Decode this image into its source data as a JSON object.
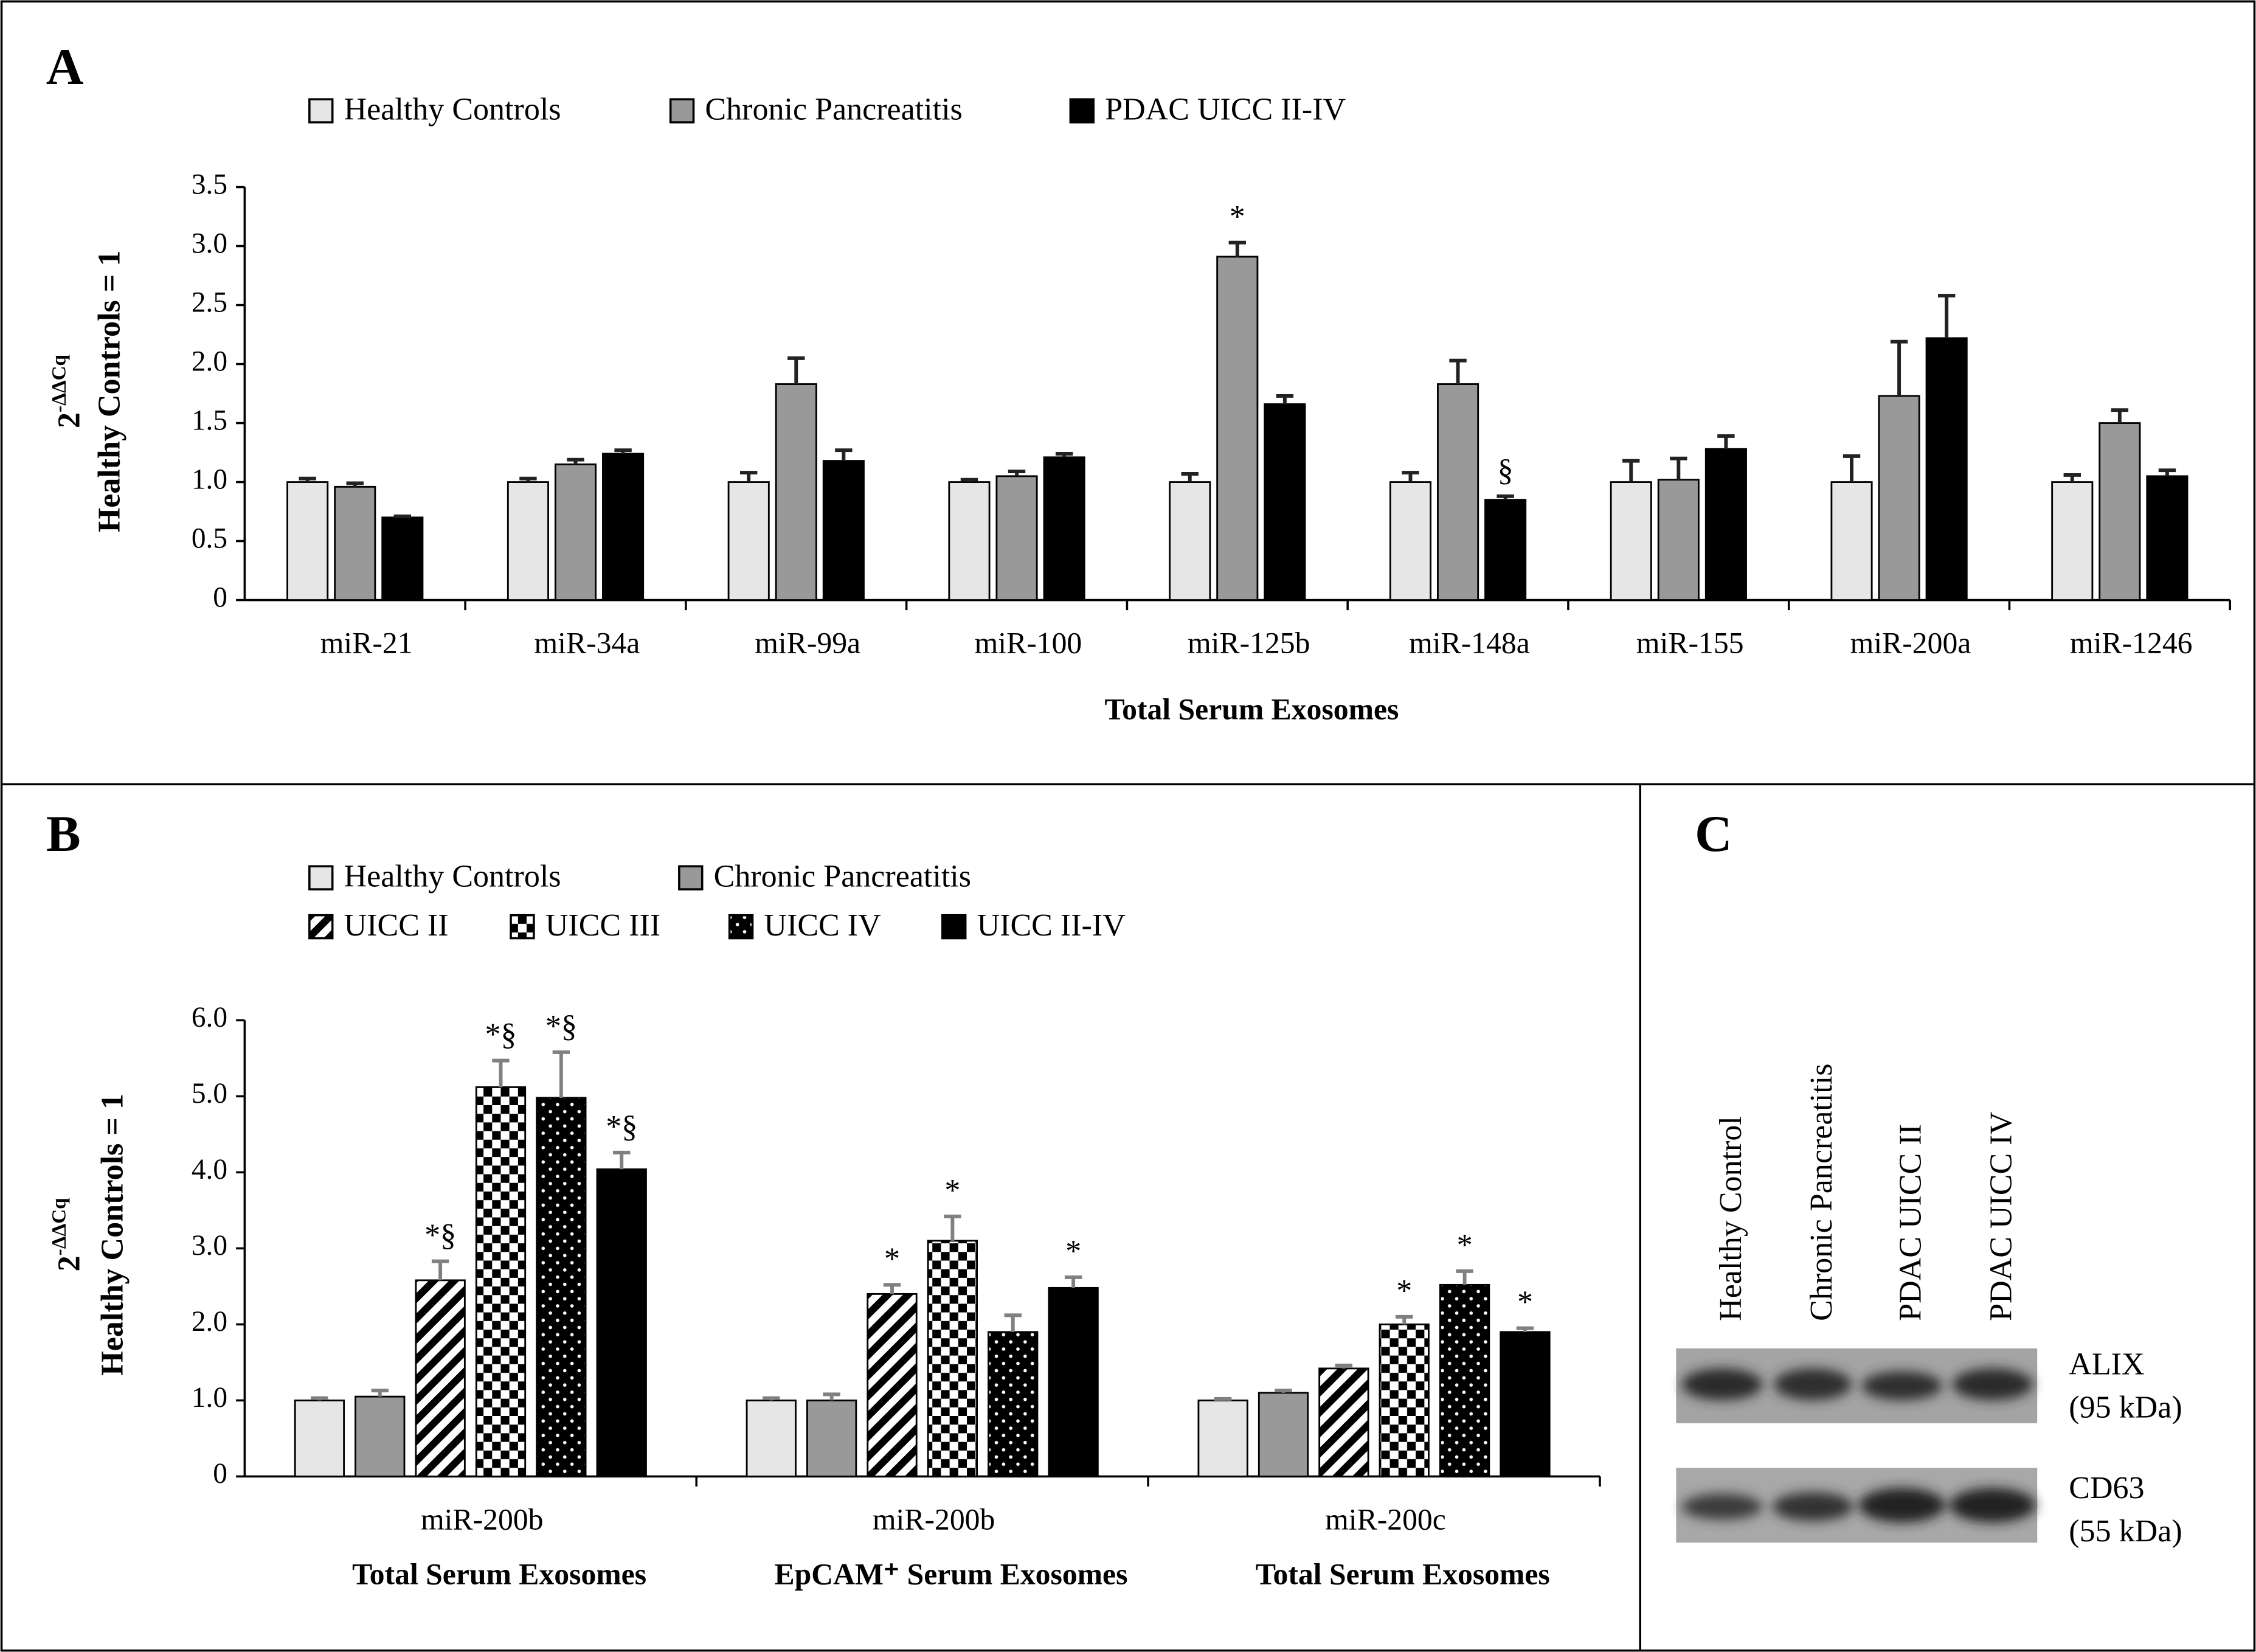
{
  "chart_data": [
    {
      "type": "bar",
      "panel": "A",
      "xlabel": "Total Serum Exosomes",
      "ylabel": "Healthy Controls = 1",
      "ylabel_base": "2",
      "ylabel_sup": "-ΔΔCq",
      "categories": [
        "miR-21",
        "miR-34a",
        "miR-99a",
        "miR-100",
        "miR-125b",
        "miR-148a",
        "miR-155",
        "miR-200a",
        "miR-1246"
      ],
      "ylim": [
        0,
        3.5
      ],
      "yticks": [
        0,
        0.5,
        {
          "value": 1,
          "label": "1.0"
        },
        1.5,
        {
          "value": 2,
          "label": "2.0"
        },
        2.5,
        {
          "value": 3,
          "label": "3.0"
        },
        3.5
      ],
      "error_color": "#222222",
      "series": [
        {
          "name": "Healthy Controls",
          "color": "#e6e6e6",
          "pattern": null,
          "values": [
            1.0,
            1.0,
            1.0,
            1.0,
            1.0,
            1.0,
            1.0,
            1.0,
            1.0
          ],
          "errors": [
            0.03,
            0.03,
            0.08,
            0.02,
            0.07,
            0.08,
            0.18,
            0.22,
            0.06
          ],
          "annotations": [
            null,
            null,
            null,
            null,
            null,
            null,
            null,
            null,
            null
          ]
        },
        {
          "name": "Chronic Pancreatitis",
          "color": "#999999",
          "pattern": null,
          "values": [
            0.96,
            1.15,
            1.83,
            1.05,
            2.91,
            1.83,
            1.02,
            1.73,
            1.5
          ],
          "errors": [
            0.03,
            0.04,
            0.22,
            0.04,
            0.12,
            0.2,
            0.18,
            0.46,
            0.11
          ],
          "annotations": [
            null,
            null,
            null,
            null,
            "*",
            null,
            null,
            null,
            null
          ]
        },
        {
          "name": "PDAC UICC II-IV",
          "color": "#000000",
          "pattern": null,
          "values": [
            0.7,
            1.24,
            1.18,
            1.21,
            1.66,
            0.85,
            1.28,
            2.22,
            1.05
          ],
          "errors": [
            0.01,
            0.03,
            0.09,
            0.03,
            0.07,
            0.03,
            0.11,
            0.36,
            0.05
          ],
          "annotations": [
            null,
            null,
            null,
            null,
            null,
            "§",
            null,
            null,
            null
          ]
        }
      ]
    },
    {
      "type": "bar",
      "panel": "B",
      "ylabel": "Healthy Controls = 1",
      "ylabel_base": "2",
      "ylabel_sup": "-ΔΔCq",
      "categories": [
        "miR-200b",
        "miR-200b",
        "miR-200c"
      ],
      "subcategories": [
        "Total Serum Exosomes",
        "EpCAM⁺ Serum Exosomes",
        "Total Serum Exosomes"
      ],
      "ylim": [
        0,
        6
      ],
      "yticks": [
        0,
        {
          "value": 1,
          "label": "1.0"
        },
        {
          "value": 2,
          "label": "2.0"
        },
        {
          "value": 3,
          "label": "3.0"
        },
        {
          "value": 4,
          "label": "4.0"
        },
        {
          "value": 5,
          "label": "5.0"
        },
        {
          "value": 6,
          "label": "6.0"
        }
      ],
      "error_color": "#808080",
      "series": [
        {
          "name": "Healthy Controls",
          "color": "#e6e6e6",
          "pattern": null,
          "values": [
            1.0,
            1.0,
            1.0
          ],
          "errors": [
            0.03,
            0.03,
            0.02
          ],
          "annotations": [
            null,
            null,
            null
          ]
        },
        {
          "name": "Chronic Pancreatitis",
          "color": "#999999",
          "pattern": null,
          "values": [
            1.05,
            1.0,
            1.1
          ],
          "errors": [
            0.08,
            0.08,
            0.03
          ],
          "annotations": [
            null,
            null,
            null
          ]
        },
        {
          "name": "UICC II",
          "color": "#000000",
          "pattern": "diagonal",
          "values": [
            2.58,
            2.4,
            1.42
          ],
          "errors": [
            0.25,
            0.12,
            0.04
          ],
          "annotations": [
            "*§",
            "*",
            null
          ]
        },
        {
          "name": "UICC III",
          "color": "#000000",
          "pattern": "checker",
          "values": [
            5.12,
            3.1,
            2.0
          ],
          "errors": [
            0.35,
            0.32,
            0.1
          ],
          "annotations": [
            "*§",
            "*",
            "*"
          ]
        },
        {
          "name": "UICC IV",
          "color": "#000000",
          "pattern": "dots",
          "values": [
            4.98,
            1.9,
            2.52
          ],
          "errors": [
            0.6,
            0.22,
            0.18
          ],
          "annotations": [
            "*§",
            null,
            "*"
          ]
        },
        {
          "name": "UICC II-IV",
          "color": "#000000",
          "pattern": null,
          "values": [
            4.04,
            2.48,
            1.9
          ],
          "errors": [
            0.22,
            0.14,
            0.05
          ],
          "annotations": [
            "*§",
            "*",
            "*"
          ]
        }
      ]
    }
  ],
  "blot": {
    "panel": "C",
    "lanes": [
      "Healthy Control",
      "Chronic Pancreatitis",
      "PDAC UICC II",
      "PDAC UICC IV"
    ],
    "bands": [
      {
        "name": "ALIX",
        "size": "(95 kDa)"
      },
      {
        "name": "CD63",
        "size": "(55 kDa)"
      }
    ]
  }
}
